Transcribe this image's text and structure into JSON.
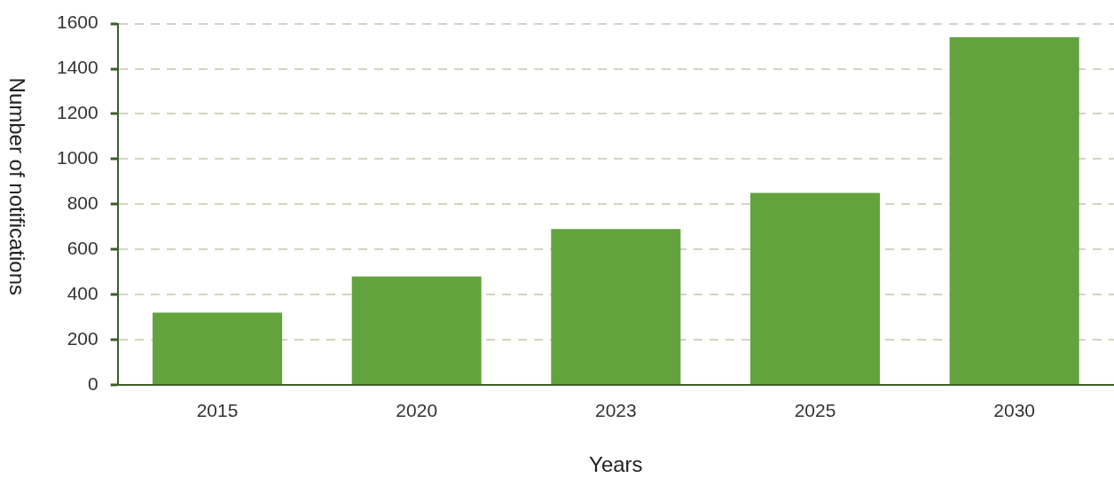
{
  "chart_data": {
    "type": "bar",
    "xlabel": "Years",
    "ylabel": "Number of notifications",
    "categories": [
      "2015",
      "2020",
      "2023",
      "2025",
      "2030"
    ],
    "values": [
      320,
      480,
      690,
      850,
      1540
    ],
    "color": "#62a33e",
    "ylim": [
      0,
      1600
    ],
    "yticks": [
      0,
      200,
      400,
      600,
      800,
      1000,
      1200,
      1400,
      1600
    ],
    "grid": "y",
    "legend": false
  }
}
